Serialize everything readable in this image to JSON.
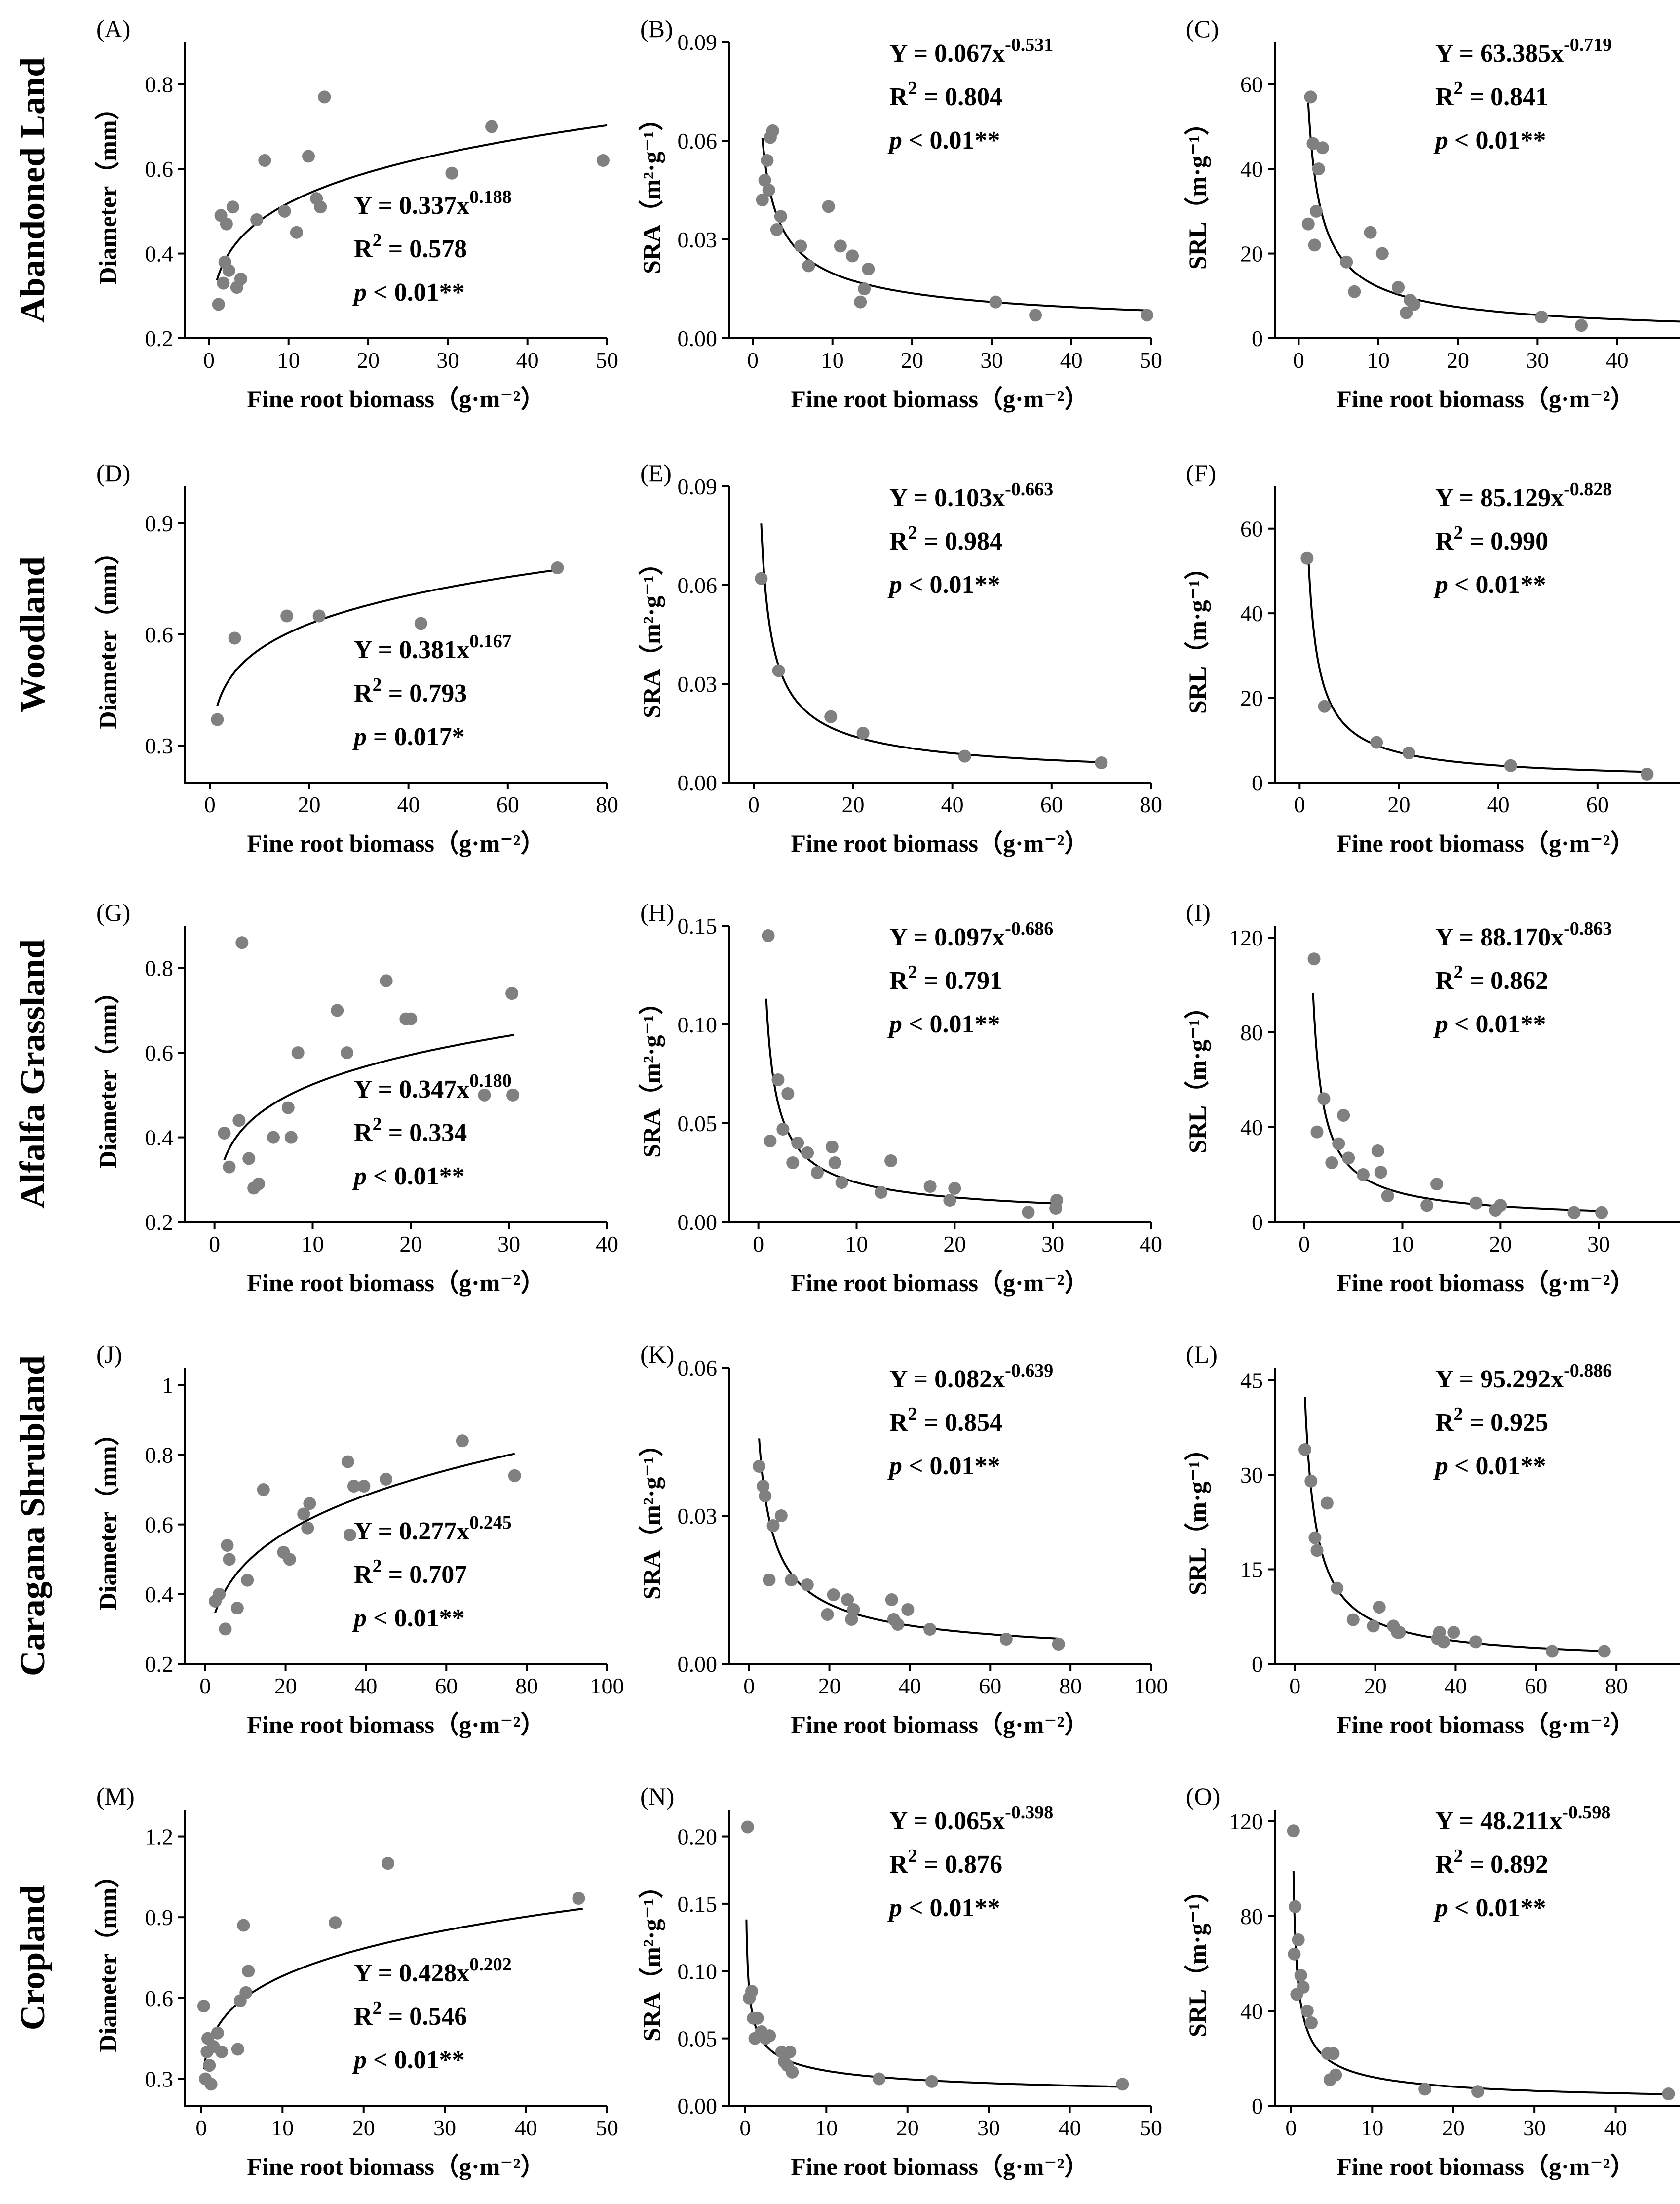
{
  "figure": {
    "rows": [
      {
        "title": "Abandoned Land",
        "panels": [
          {
            "tag": "(A)",
            "ylabel": "Diameter（mm）",
            "xlabel": "Fine root biomass（g·m⁻²）",
            "eq": {
              "coef": "0.337",
              "exp": "0.188",
              "r2": "0.578",
              "p": "< 0.01**"
            }
          },
          {
            "tag": "(B)",
            "ylabel": "SRA（m²·g⁻¹）",
            "xlabel": "Fine root biomass（g·m⁻²）",
            "eq": {
              "coef": "0.067",
              "exp": "-0.531",
              "r2": "0.804",
              "p": "< 0.01**"
            }
          },
          {
            "tag": "(C)",
            "ylabel": "SRL（m·g⁻¹）",
            "xlabel": "Fine root biomass（g·m⁻²）",
            "eq": {
              "coef": "63.385",
              "exp": "-0.719",
              "r2": "0.841",
              "p": "< 0.01**"
            }
          }
        ]
      },
      {
        "title": "Woodland",
        "panels": [
          {
            "tag": "(D)",
            "ylabel": "Diameter（mm）",
            "xlabel": "Fine root biomass（g·m⁻²）",
            "eq": {
              "coef": "0.381",
              "exp": "0.167",
              "r2": "0.793",
              "p": "= 0.017*"
            }
          },
          {
            "tag": "(E)",
            "ylabel": "SRA（m²·g⁻¹）",
            "xlabel": "Fine root biomass（g·m⁻²）",
            "eq": {
              "coef": "0.103",
              "exp": "-0.663",
              "r2": "0.984",
              "p": "< 0.01**"
            }
          },
          {
            "tag": "(F)",
            "ylabel": "SRL（m·g⁻¹）",
            "xlabel": "Fine root biomass（g·m⁻²）",
            "eq": {
              "coef": "85.129",
              "exp": "-0.828",
              "r2": "0.990",
              "p": "< 0.01**"
            }
          }
        ]
      },
      {
        "title": "Alfalfa Grassland",
        "panels": [
          {
            "tag": "(G)",
            "ylabel": "Diameter（mm）",
            "xlabel": "Fine root biomass（g·m⁻²）",
            "eq": {
              "coef": "0.347",
              "exp": "0.180",
              "r2": "0.334",
              "p": "< 0.01**"
            }
          },
          {
            "tag": "(H)",
            "ylabel": "SRA（m²·g⁻¹）",
            "xlabel": "Fine root biomass（g·m⁻²）",
            "eq": {
              "coef": "0.097",
              "exp": "-0.686",
              "r2": "0.791",
              "p": "< 0.01**"
            }
          },
          {
            "tag": "(I)",
            "ylabel": "SRL（m·g⁻¹）",
            "xlabel": "Fine root biomass（g·m⁻²）",
            "eq": {
              "coef": "88.170",
              "exp": "-0.863",
              "r2": "0.862",
              "p": "< 0.01**"
            }
          }
        ]
      },
      {
        "title": "Caragana Shrubland",
        "panels": [
          {
            "tag": "(J)",
            "ylabel": "Diameter（mm）",
            "xlabel": "Fine root biomass（g·m⁻²）",
            "eq": {
              "coef": "0.277",
              "exp": "0.245",
              "r2": "0.707",
              "p": "< 0.01**"
            }
          },
          {
            "tag": "(K)",
            "ylabel": "SRA（m²·g⁻¹）",
            "xlabel": "Fine root biomass（g·m⁻²）",
            "eq": {
              "coef": "0.082",
              "exp": "-0.639",
              "r2": "0.854",
              "p": "< 0.01**"
            }
          },
          {
            "tag": "(L)",
            "ylabel": "SRL（m·g⁻¹）",
            "xlabel": "Fine root biomass（g·m⁻²）",
            "eq": {
              "coef": "95.292",
              "exp": "-0.886",
              "r2": "0.925",
              "p": "< 0.01**"
            }
          }
        ]
      },
      {
        "title": "Cropland",
        "panels": [
          {
            "tag": "(M)",
            "ylabel": "Diameter（mm）",
            "xlabel": "Fine root biomass（g·m⁻²）",
            "eq": {
              "coef": "0.428",
              "exp": "0.202",
              "r2": "0.546",
              "p": "< 0.01**"
            }
          },
          {
            "tag": "(N)",
            "ylabel": "SRA（m²·g⁻¹）",
            "xlabel": "Fine root biomass（g·m⁻²）",
            "eq": {
              "coef": "0.065",
              "exp": "-0.398",
              "r2": "0.876",
              "p": "< 0.01**"
            }
          },
          {
            "tag": "(O)",
            "ylabel": "SRL（m·g⁻¹）",
            "xlabel": "Fine root biomass（g·m⁻²）",
            "eq": {
              "coef": "48.211",
              "exp": "-0.598",
              "r2": "0.892",
              "p": "< 0.01**"
            }
          }
        ]
      }
    ],
    "labels": {
      "y_prefix": "Y = ",
      "r2_prefix": "R",
      "r2_sup": "2",
      "r2_eq": " = ",
      "p_letter": "p"
    }
  },
  "colors": {
    "points": "#808080",
    "curve": "#000000",
    "axis": "#000000"
  },
  "chart_data": [
    {
      "type": "scatter",
      "xlim": [
        -3,
        50
      ],
      "ylim": [
        0.2,
        0.9
      ],
      "xticks": [
        0,
        10,
        20,
        30,
        40,
        50
      ],
      "yticks": [
        0.2,
        0.4,
        0.6,
        0.8
      ],
      "fit": {
        "a": 0.337,
        "b": 0.188,
        "x_range": [
          1,
          50
        ]
      },
      "x": [
        1.2,
        1.5,
        1.8,
        2.0,
        2.2,
        2.5,
        3.0,
        3.5,
        4.0,
        6.0,
        7.0,
        9.5,
        11.0,
        12.5,
        13.5,
        14.0,
        14.5,
        30.5,
        35.5,
        49.5
      ],
      "y": [
        0.28,
        0.49,
        0.33,
        0.38,
        0.47,
        0.36,
        0.51,
        0.32,
        0.34,
        0.48,
        0.62,
        0.5,
        0.45,
        0.63,
        0.53,
        0.51,
        0.77,
        0.59,
        0.7,
        0.62
      ]
    },
    {
      "type": "scatter",
      "xlim": [
        -3,
        50
      ],
      "ylim": [
        0,
        0.09
      ],
      "xticks": [
        0,
        10,
        20,
        30,
        40,
        50
      ],
      "yticks": [
        0.0,
        0.03,
        0.06,
        0.09
      ],
      "tick_decimals": 2,
      "fit": {
        "a": 0.067,
        "b": -0.531,
        "x_range": [
          1.2,
          50
        ]
      },
      "x": [
        1.2,
        1.5,
        1.8,
        2.0,
        2.2,
        2.5,
        3.0,
        3.5,
        6.0,
        7.0,
        9.5,
        11.0,
        12.5,
        13.5,
        14.0,
        14.5,
        30.5,
        35.5,
        49.5
      ],
      "y": [
        0.042,
        0.048,
        0.054,
        0.045,
        0.061,
        0.063,
        0.033,
        0.037,
        0.028,
        0.022,
        0.04,
        0.028,
        0.025,
        0.011,
        0.015,
        0.021,
        0.011,
        0.007,
        0.007
      ]
    },
    {
      "type": "scatter",
      "xlim": [
        -3,
        50
      ],
      "ylim": [
        0,
        70
      ],
      "xticks": [
        0,
        10,
        20,
        30,
        40,
        50
      ],
      "yticks": [
        0,
        20,
        40,
        60
      ],
      "fit": {
        "a": 63.385,
        "b": -0.719,
        "x_range": [
          1.2,
          50
        ]
      },
      "x": [
        1.2,
        1.5,
        1.8,
        2.0,
        2.2,
        2.5,
        3.0,
        6.0,
        7.0,
        9.0,
        10.5,
        12.5,
        13.5,
        14.0,
        14.5,
        30.5,
        35.5,
        49.5
      ],
      "y": [
        27,
        57,
        46,
        22,
        30,
        40,
        45,
        18,
        11,
        25,
        20,
        12,
        6,
        9,
        8,
        5,
        3,
        3
      ]
    },
    {
      "type": "scatter",
      "xlim": [
        -5,
        80
      ],
      "ylim": [
        0.2,
        1.0
      ],
      "xticks": [
        0,
        20,
        40,
        60,
        80
      ],
      "yticks": [
        0.3,
        0.6,
        0.9
      ],
      "fit": {
        "a": 0.381,
        "b": 0.167,
        "x_range": [
          1.5,
          70
        ]
      },
      "x": [
        1.5,
        5.0,
        15.5,
        22.0,
        42.5,
        70.0
      ],
      "y": [
        0.37,
        0.59,
        0.65,
        0.65,
        0.63,
        0.78
      ]
    },
    {
      "type": "scatter",
      "xlim": [
        -5,
        80
      ],
      "ylim": [
        0,
        0.09
      ],
      "xticks": [
        0,
        20,
        40,
        60,
        80
      ],
      "yticks": [
        0.0,
        0.03,
        0.06,
        0.09
      ],
      "tick_decimals": 2,
      "fit": {
        "a": 0.103,
        "b": -0.663,
        "x_range": [
          1.5,
          70
        ]
      },
      "x": [
        1.5,
        5.0,
        15.5,
        22.0,
        42.5,
        70.0
      ],
      "y": [
        0.062,
        0.034,
        0.02,
        0.015,
        0.008,
        0.006
      ]
    },
    {
      "type": "scatter",
      "xlim": [
        -5,
        80
      ],
      "ylim": [
        0,
        70
      ],
      "xticks": [
        0,
        20,
        40,
        60,
        80
      ],
      "yticks": [
        0,
        20,
        40,
        60
      ],
      "fit": {
        "a": 85.129,
        "b": -0.828,
        "x_range": [
          1.8,
          70
        ]
      },
      "x": [
        1.5,
        5.0,
        15.5,
        22.0,
        42.5,
        70.0
      ],
      "y": [
        53,
        18,
        9.5,
        7,
        4,
        2
      ]
    },
    {
      "type": "scatter",
      "xlim": [
        -3,
        40
      ],
      "ylim": [
        0.2,
        0.9
      ],
      "xticks": [
        0,
        10,
        20,
        30,
        40
      ],
      "yticks": [
        0.2,
        0.4,
        0.6,
        0.8
      ],
      "fit": {
        "a": 0.347,
        "b": 0.18,
        "x_range": [
          1,
          30.5
        ]
      },
      "x": [
        1.0,
        1.5,
        2.5,
        2.8,
        3.5,
        4.0,
        4.5,
        6.0,
        7.5,
        7.8,
        8.5,
        12.5,
        13.5,
        17.5,
        19.5,
        20.0,
        27.5,
        30.3,
        30.4
      ],
      "y": [
        0.41,
        0.33,
        0.44,
        0.86,
        0.35,
        0.28,
        0.29,
        0.4,
        0.47,
        0.4,
        0.6,
        0.7,
        0.6,
        0.77,
        0.68,
        0.68,
        0.5,
        0.74,
        0.5
      ]
    },
    {
      "type": "scatter",
      "xlim": [
        -3,
        40
      ],
      "ylim": [
        0,
        0.15
      ],
      "xticks": [
        0,
        10,
        20,
        30,
        40
      ],
      "yticks": [
        0.0,
        0.05,
        0.1,
        0.15
      ],
      "tick_decimals": 2,
      "fit": {
        "a": 0.097,
        "b": -0.686,
        "x_range": [
          0.8,
          30.5
        ]
      },
      "x": [
        1.0,
        1.2,
        2.0,
        2.5,
        3.0,
        3.5,
        4.0,
        5.0,
        6.0,
        7.5,
        7.8,
        8.5,
        12.5,
        13.5,
        17.5,
        19.5,
        20.0,
        27.5,
        30.3,
        30.4
      ],
      "y": [
        0.145,
        0.041,
        0.072,
        0.047,
        0.065,
        0.03,
        0.04,
        0.035,
        0.025,
        0.038,
        0.03,
        0.02,
        0.015,
        0.031,
        0.018,
        0.011,
        0.017,
        0.005,
        0.007,
        0.011
      ]
    },
    {
      "type": "scatter",
      "xlim": [
        -3,
        40
      ],
      "ylim": [
        0,
        125
      ],
      "xticks": [
        0,
        10,
        20,
        30,
        40
      ],
      "yticks": [
        0,
        40,
        80,
        120
      ],
      "fit": {
        "a": 88.17,
        "b": -0.863,
        "x_range": [
          0.9,
          30.5
        ]
      },
      "x": [
        1.0,
        1.3,
        2.0,
        2.8,
        3.5,
        4.0,
        4.5,
        6.0,
        7.5,
        7.8,
        8.5,
        12.5,
        13.5,
        17.5,
        19.5,
        20.0,
        27.5,
        30.3
      ],
      "y": [
        111,
        38,
        52,
        25,
        33,
        45,
        27,
        20,
        30,
        21,
        11,
        7,
        16,
        8,
        5,
        7,
        4,
        4
      ]
    },
    {
      "type": "scatter",
      "xlim": [
        -5,
        100
      ],
      "ylim": [
        0.2,
        1.05
      ],
      "xticks": [
        0,
        20,
        40,
        60,
        80,
        100
      ],
      "yticks": [
        0.2,
        0.4,
        0.6,
        0.8,
        1.0
      ],
      "fit": {
        "a": 0.277,
        "b": 0.245,
        "x_range": [
          2.5,
          77
        ]
      },
      "x": [
        2.5,
        3.5,
        5.0,
        5.5,
        6.0,
        8.0,
        10.5,
        14.5,
        19.5,
        21.0,
        24.5,
        25.5,
        26.0,
        35.5,
        36.0,
        37.0,
        39.5,
        45.0,
        64.0,
        77.0
      ],
      "y": [
        0.38,
        0.4,
        0.3,
        0.54,
        0.5,
        0.36,
        0.44,
        0.7,
        0.52,
        0.5,
        0.63,
        0.59,
        0.66,
        0.78,
        0.57,
        0.71,
        0.71,
        0.73,
        0.84,
        0.74
      ]
    },
    {
      "type": "scatter",
      "xlim": [
        -5,
        100
      ],
      "ylim": [
        0,
        0.06
      ],
      "xticks": [
        0,
        20,
        40,
        60,
        80,
        100
      ],
      "yticks": [
        0.0,
        0.03,
        0.06
      ],
      "tick_decimals": 2,
      "fit": {
        "a": 0.082,
        "b": -0.639,
        "x_range": [
          2.5,
          77
        ]
      },
      "x": [
        2.5,
        3.5,
        4.0,
        5.0,
        6.0,
        8.0,
        10.5,
        14.5,
        19.5,
        21.0,
        24.5,
        25.5,
        26.0,
        35.5,
        36.0,
        37.0,
        39.5,
        45.0,
        64.0,
        77.0
      ],
      "y": [
        0.04,
        0.036,
        0.034,
        0.017,
        0.028,
        0.03,
        0.017,
        0.016,
        0.01,
        0.014,
        0.013,
        0.009,
        0.011,
        0.013,
        0.009,
        0.008,
        0.011,
        0.007,
        0.005,
        0.004
      ]
    },
    {
      "type": "scatter",
      "xlim": [
        -5,
        100
      ],
      "ylim": [
        0,
        47
      ],
      "xticks": [
        0,
        20,
        40,
        60,
        80,
        100
      ],
      "yticks": [
        0,
        15,
        30,
        45
      ],
      "fit": {
        "a": 95.292,
        "b": -0.886,
        "x_range": [
          2.5,
          77
        ]
      },
      "x": [
        2.5,
        4.0,
        5.0,
        5.5,
        8.0,
        10.5,
        14.5,
        19.5,
        21.0,
        24.5,
        25.5,
        26.0,
        35.5,
        36.0,
        37.0,
        39.5,
        45.0,
        64.0,
        77.0
      ],
      "y": [
        34,
        29,
        20,
        18,
        25.5,
        12,
        7,
        6,
        9,
        6,
        5,
        5,
        4,
        5,
        3.5,
        5,
        3.5,
        2,
        2
      ]
    },
    {
      "type": "scatter",
      "xlim": [
        -2,
        50
      ],
      "ylim": [
        0.2,
        1.3
      ],
      "xticks": [
        0,
        10,
        20,
        30,
        40,
        50
      ],
      "yticks": [
        0.3,
        0.6,
        0.9,
        1.2
      ],
      "fit": {
        "a": 0.428,
        "b": 0.202,
        "x_range": [
          0.3,
          47
        ]
      },
      "x": [
        0.3,
        0.5,
        0.7,
        0.8,
        1.0,
        1.2,
        1.5,
        2.0,
        2.5,
        4.5,
        4.8,
        5.2,
        5.5,
        5.8,
        16.5,
        23.0,
        46.5
      ],
      "y": [
        0.57,
        0.3,
        0.4,
        0.45,
        0.35,
        0.28,
        0.42,
        0.47,
        0.4,
        0.41,
        0.59,
        0.87,
        0.62,
        0.7,
        0.88,
        1.1,
        0.97
      ]
    },
    {
      "type": "scatter",
      "xlim": [
        -2,
        50
      ],
      "ylim": [
        0,
        0.22
      ],
      "xticks": [
        0,
        10,
        20,
        30,
        40,
        50
      ],
      "yticks": [
        0.0,
        0.05,
        0.1,
        0.15,
        0.2
      ],
      "tick_decimals": 2,
      "fit": {
        "a": 0.065,
        "b": -0.398,
        "x_range": [
          0.15,
          47
        ]
      },
      "x": [
        0.3,
        0.5,
        0.8,
        1.0,
        1.2,
        1.5,
        2.0,
        2.5,
        3.0,
        4.5,
        4.8,
        5.2,
        5.5,
        5.8,
        16.5,
        23.0,
        46.5
      ],
      "y": [
        0.207,
        0.08,
        0.085,
        0.065,
        0.05,
        0.065,
        0.055,
        0.05,
        0.052,
        0.04,
        0.033,
        0.03,
        0.04,
        0.025,
        0.02,
        0.018,
        0.016
      ]
    },
    {
      "type": "scatter",
      "xlim": [
        -2,
        50
      ],
      "ylim": [
        0,
        125
      ],
      "xticks": [
        0,
        10,
        20,
        30,
        40,
        50
      ],
      "yticks": [
        0,
        40,
        80,
        120
      ],
      "fit": {
        "a": 48.211,
        "b": -0.598,
        "x_range": [
          0.3,
          47
        ]
      },
      "x": [
        0.3,
        0.4,
        0.5,
        0.7,
        0.9,
        1.2,
        1.5,
        2.0,
        2.5,
        4.5,
        4.8,
        5.2,
        5.5,
        16.5,
        23.0,
        46.5
      ],
      "y": [
        116,
        64,
        84,
        47,
        70,
        55,
        50,
        40,
        35,
        22,
        11,
        22,
        13,
        7,
        6,
        5
      ]
    }
  ]
}
